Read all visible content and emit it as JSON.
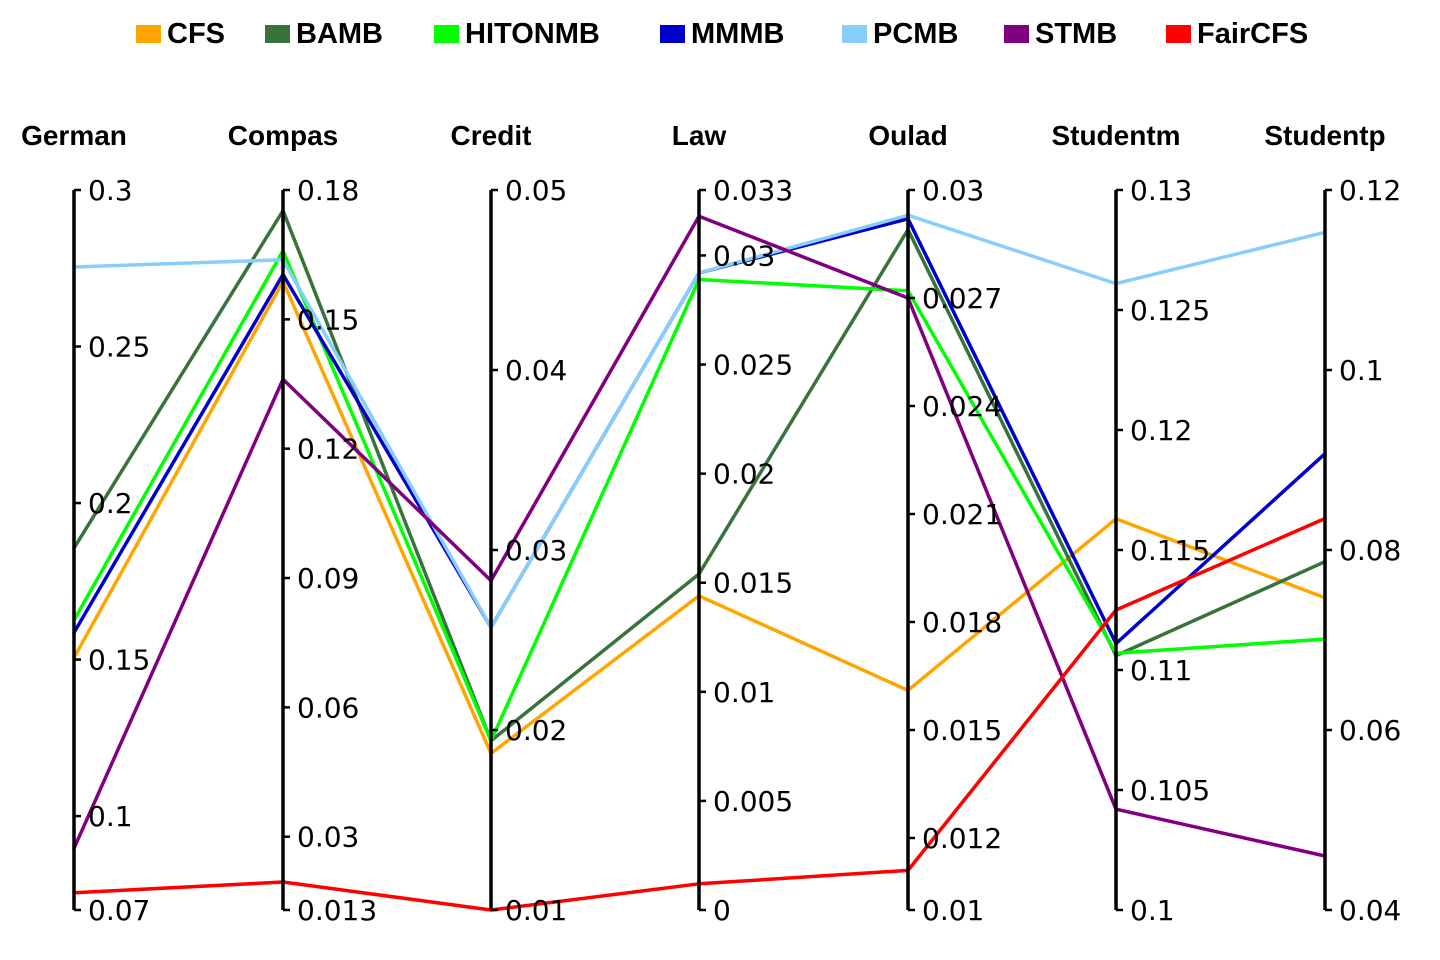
{
  "chart_data": {
    "type": "parallel-coordinates",
    "legend_position": "top",
    "axes": [
      {
        "name": "German",
        "range": [
          0.07,
          0.3
        ],
        "ticks": [
          "0.07",
          "0.1",
          "0.15",
          "0.2",
          "0.25",
          "0.3"
        ]
      },
      {
        "name": "Compas",
        "range": [
          0.013,
          0.18
        ],
        "ticks": [
          "0.013",
          "0.03",
          "0.06",
          "0.09",
          "0.12",
          "0.15",
          "0.18"
        ]
      },
      {
        "name": "Credit",
        "range": [
          0.01,
          0.05
        ],
        "ticks": [
          "0.01",
          "0.02",
          "0.03",
          "0.04",
          "0.05"
        ]
      },
      {
        "name": "Law",
        "range": [
          0,
          0.033
        ],
        "ticks": [
          "0",
          "0.005",
          "0.01",
          "0.015",
          "0.02",
          "0.025",
          "0.03",
          "0.033"
        ]
      },
      {
        "name": "Oulad",
        "range": [
          0.01,
          0.03
        ],
        "ticks": [
          "0.01",
          "0.012",
          "0.015",
          "0.018",
          "0.021",
          "0.024",
          "0.027",
          "0.03"
        ]
      },
      {
        "name": "Studentm",
        "range": [
          0.1,
          0.13
        ],
        "ticks": [
          "0.1",
          "0.105",
          "0.11",
          "0.115",
          "0.12",
          "0.125",
          "0.13"
        ]
      },
      {
        "name": "Studentp",
        "range": [
          0.04,
          0.12
        ],
        "ticks": [
          "0.04",
          "0.06",
          "0.08",
          "0.1",
          "0.12"
        ]
      }
    ],
    "series": [
      {
        "name": "CFS",
        "color": "#FFA500",
        "values": [
          0.1506,
          0.1588,
          0.0187,
          0.0144,
          0.0161,
          0.1163,
          0.0747
        ]
      },
      {
        "name": "BAMB",
        "color": "#38733C",
        "values": [
          0.1856,
          0.1752,
          0.0194,
          0.0154,
          0.0289,
          0.1106,
          0.0787
        ]
      },
      {
        "name": "HITONMB",
        "color": "#00FF00",
        "values": [
          0.1626,
          0.1659,
          0.0194,
          0.0289,
          0.0272,
          0.1107,
          0.0701
        ]
      },
      {
        "name": "MMMB",
        "color": "#0000CC",
        "values": [
          0.1586,
          0.1604,
          0.0257,
          0.0292,
          0.0292,
          0.1111,
          0.0907
        ]
      },
      {
        "name": "PCMB",
        "color": "#87CEFA",
        "values": [
          0.2754,
          0.1638,
          0.0257,
          0.0292,
          0.0293,
          0.1261,
          0.1153
        ]
      },
      {
        "name": "STMB",
        "color": "#800080",
        "values": [
          0.0897,
          0.1361,
          0.0283,
          0.0318,
          0.027,
          0.1042,
          0.046
        ]
      },
      {
        "name": "FairCFS",
        "color": "#FF0000",
        "values": [
          0.0755,
          0.0195,
          0.01,
          0.0012,
          0.0111,
          0.1125,
          0.0835
        ]
      }
    ]
  }
}
